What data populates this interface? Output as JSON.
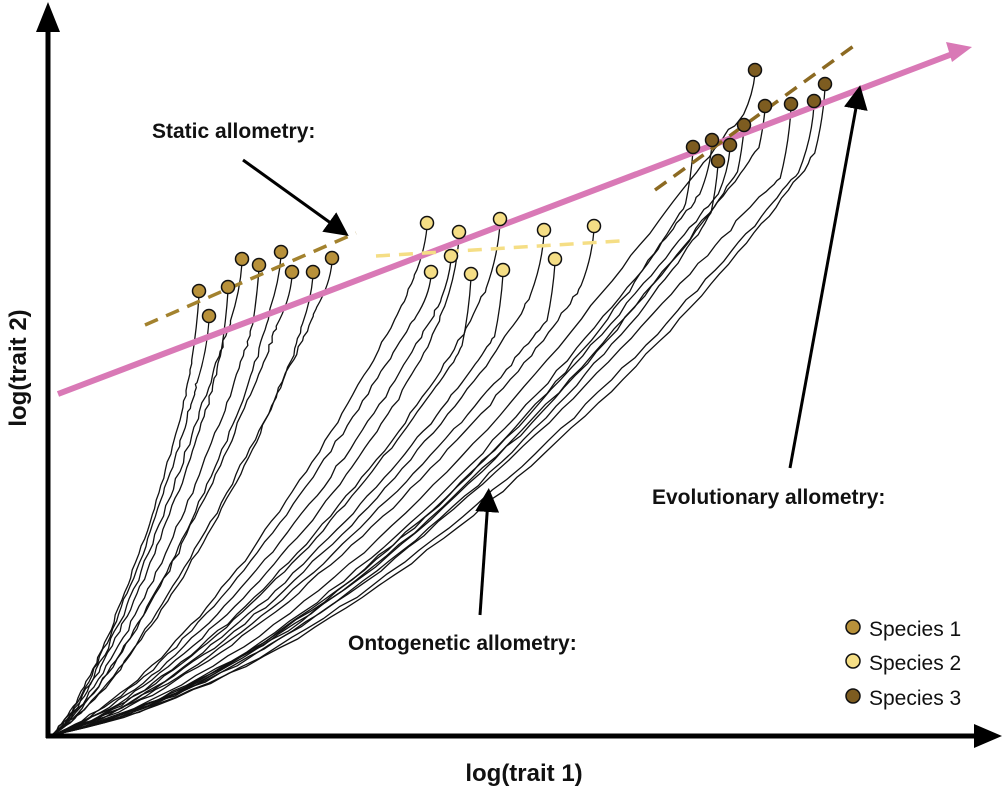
{
  "axes": {
    "x_label": "log(trait 1)",
    "y_label": "log(trait 2)"
  },
  "annotations": {
    "static": "Static allometry:",
    "evolutionary": "Evolutionary allometry:",
    "ontogenetic": "Ontogenetic allometry:"
  },
  "legend": [
    {
      "label": "Species 1",
      "color": "#b8913a"
    },
    {
      "label": "Species 2",
      "color": "#f5de85"
    },
    {
      "label": "Species 3",
      "color": "#7d5c20"
    }
  ],
  "colors": {
    "evolutionary_line": "#d979b6",
    "static_species1": "#a3822e",
    "static_species2": "#f5de85",
    "static_species3": "#8c6a22",
    "ontogeny": "#111111",
    "axis": "#000000"
  }
}
